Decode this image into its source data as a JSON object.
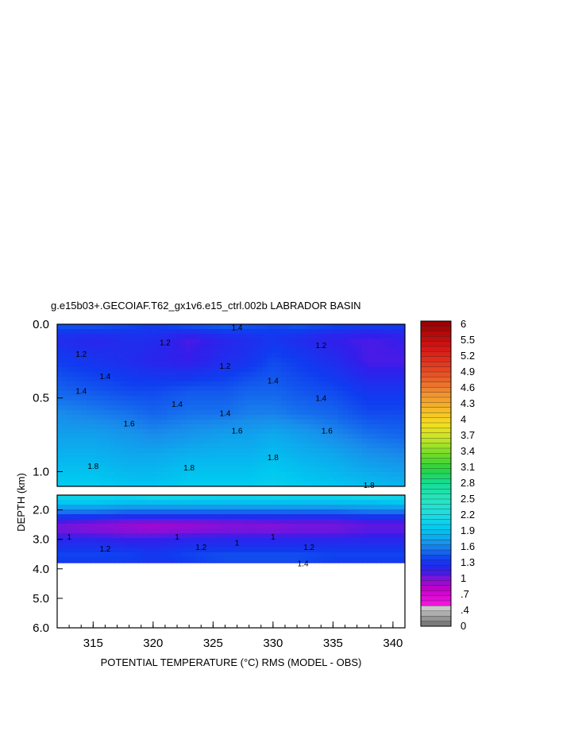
{
  "chart_data": {
    "type": "heatmap",
    "title": "g.e15b03+.GECOIAF.T62_gx1v6.e15_ctrl.002b LABRADOR BASIN",
    "xlabel": "POTENTIAL TEMPERATURE (°C) RMS (MODEL - OBS)",
    "ylabel": "DEPTH (km)",
    "xlim": [
      312,
      341
    ],
    "x_ticks": [
      "315",
      "320",
      "325",
      "330",
      "335",
      "340"
    ],
    "upper_panel": {
      "ylim": [
        0.0,
        1.1
      ],
      "y_ticks": [
        "0.0",
        "0.5",
        "1.0"
      ]
    },
    "lower_panel": {
      "ylim": [
        1.5,
        6.0
      ],
      "y_ticks": [
        "2.0",
        "3.0",
        "4.0",
        "5.0",
        "6.0"
      ]
    },
    "colorbar": {
      "min": 0,
      "max": 6,
      "labels": [
        "6",
        "5.5",
        "5.2",
        "4.9",
        "4.6",
        "4.3",
        "4",
        "3.7",
        "3.4",
        "3.1",
        "2.8",
        "2.5",
        "2.2",
        "1.9",
        "1.6",
        "1.3",
        "1",
        ".7",
        ".4",
        "0"
      ]
    },
    "x": [
      312,
      315,
      318,
      320,
      323,
      326,
      328,
      330,
      332,
      335,
      338,
      341
    ],
    "depth": [
      0.0,
      0.1,
      0.25,
      0.45,
      0.6,
      0.75,
      0.9,
      1.05,
      1.1,
      1.5,
      1.75,
      2.0,
      2.2,
      2.4,
      2.6,
      2.8,
      3.0,
      3.3,
      3.6,
      3.8
    ],
    "values": [
      [
        1.4,
        1.4,
        1.35,
        1.3,
        1.4,
        1.45,
        1.4,
        1.35,
        1.4,
        1.35,
        1.3,
        1.3
      ],
      [
        1.2,
        1.15,
        1.2,
        1.2,
        1.05,
        1.15,
        1.2,
        1.25,
        1.2,
        1.1,
        1.05,
        1.1
      ],
      [
        1.3,
        1.25,
        1.2,
        1.15,
        1.1,
        1.2,
        1.25,
        1.35,
        1.3,
        1.2,
        1.05,
        1.05
      ],
      [
        1.45,
        1.4,
        1.35,
        1.35,
        1.4,
        1.4,
        1.45,
        1.45,
        1.4,
        1.35,
        1.25,
        1.25
      ],
      [
        1.6,
        1.55,
        1.5,
        1.45,
        1.5,
        1.5,
        1.55,
        1.55,
        1.5,
        1.45,
        1.35,
        1.35
      ],
      [
        1.7,
        1.7,
        1.65,
        1.6,
        1.65,
        1.7,
        1.7,
        1.75,
        1.7,
        1.6,
        1.5,
        1.45
      ],
      [
        1.8,
        1.8,
        1.75,
        1.75,
        1.8,
        1.8,
        1.8,
        1.85,
        1.8,
        1.75,
        1.65,
        1.6
      ],
      [
        1.9,
        1.9,
        1.85,
        1.85,
        1.9,
        1.9,
        1.9,
        1.95,
        1.9,
        1.85,
        1.8,
        1.75
      ],
      [
        1.95,
        1.95,
        1.9,
        1.9,
        1.95,
        1.95,
        1.95,
        2.0,
        1.95,
        1.9,
        1.85,
        1.8
      ],
      [
        2.1,
        2.1,
        2.1,
        2.2,
        2.15,
        2.1,
        2.1,
        2.15,
        2.1,
        2.1,
        2.2,
        2.1
      ],
      [
        1.9,
        1.9,
        1.85,
        1.85,
        1.85,
        1.85,
        1.85,
        1.85,
        1.85,
        1.85,
        1.85,
        1.9
      ],
      [
        1.6,
        1.6,
        1.55,
        1.55,
        1.55,
        1.55,
        1.55,
        1.55,
        1.55,
        1.55,
        1.6,
        1.6
      ],
      [
        1.3,
        1.3,
        1.25,
        1.25,
        1.25,
        1.25,
        1.25,
        1.25,
        1.25,
        1.25,
        1.3,
        1.3
      ],
      [
        1.05,
        1.0,
        0.95,
        0.95,
        0.95,
        0.97,
        0.98,
        1.0,
        1.0,
        1.0,
        1.05,
        1.05
      ],
      [
        0.95,
        0.9,
        0.85,
        0.8,
        0.85,
        0.9,
        0.92,
        0.9,
        0.95,
        0.95,
        1.0,
        1.0
      ],
      [
        1.0,
        0.98,
        0.95,
        0.95,
        0.98,
        1.0,
        1.0,
        1.0,
        1.0,
        1.0,
        1.05,
        1.05
      ],
      [
        1.15,
        1.15,
        1.1,
        1.1,
        1.15,
        1.15,
        1.15,
        1.15,
        1.15,
        1.15,
        1.15,
        1.15
      ],
      [
        1.25,
        1.25,
        1.22,
        1.2,
        1.25,
        1.25,
        1.25,
        1.25,
        1.25,
        1.25,
        1.25,
        1.25
      ],
      [
        1.35,
        1.35,
        1.35,
        1.3,
        1.35,
        1.4,
        1.4,
        1.4,
        1.4,
        1.35,
        1.35,
        1.35
      ],
      [
        1.25,
        1.25,
        1.25,
        1.2,
        1.25,
        1.3,
        1.3,
        1.3,
        1.3,
        1.25,
        1.25,
        1.25
      ]
    ],
    "contour_labels": [
      {
        "text": "1.4",
        "x": 327,
        "d": 0.02
      },
      {
        "text": "1.2",
        "x": 314,
        "d": 0.2
      },
      {
        "text": "1.2",
        "x": 321,
        "d": 0.12
      },
      {
        "text": "1.2",
        "x": 326,
        "d": 0.28
      },
      {
        "text": "1.2",
        "x": 334,
        "d": 0.14
      },
      {
        "text": "1.4",
        "x": 316,
        "d": 0.35
      },
      {
        "text": "1.4",
        "x": 314,
        "d": 0.45
      },
      {
        "text": "1.4",
        "x": 322,
        "d": 0.54
      },
      {
        "text": "1.4",
        "x": 326,
        "d": 0.6
      },
      {
        "text": "1.4",
        "x": 330,
        "d": 0.38
      },
      {
        "text": "1.4",
        "x": 334,
        "d": 0.5
      },
      {
        "text": "1.6",
        "x": 318,
        "d": 0.67
      },
      {
        "text": "1.6",
        "x": 327,
        "d": 0.72
      },
      {
        "text": "1.6",
        "x": 334.5,
        "d": 0.72
      },
      {
        "text": "1.8",
        "x": 315,
        "d": 0.96
      },
      {
        "text": "1.8",
        "x": 323,
        "d": 0.97
      },
      {
        "text": "1.8",
        "x": 330,
        "d": 0.9
      },
      {
        "text": "1.8",
        "x": 338,
        "d": 1.15
      },
      {
        "text": "1.2",
        "x": 316,
        "d": 3.3
      },
      {
        "text": "1.2",
        "x": 324,
        "d": 3.25
      },
      {
        "text": "1.2",
        "x": 333,
        "d": 3.25
      },
      {
        "text": "1.4",
        "x": 332.5,
        "d": 3.8
      },
      {
        "text": "1",
        "x": 313,
        "d": 2.9
      },
      {
        "text": "1",
        "x": 322,
        "d": 2.9
      },
      {
        "text": "1",
        "x": 330,
        "d": 2.9
      },
      {
        "text": "1",
        "x": 327,
        "d": 3.1
      }
    ]
  }
}
